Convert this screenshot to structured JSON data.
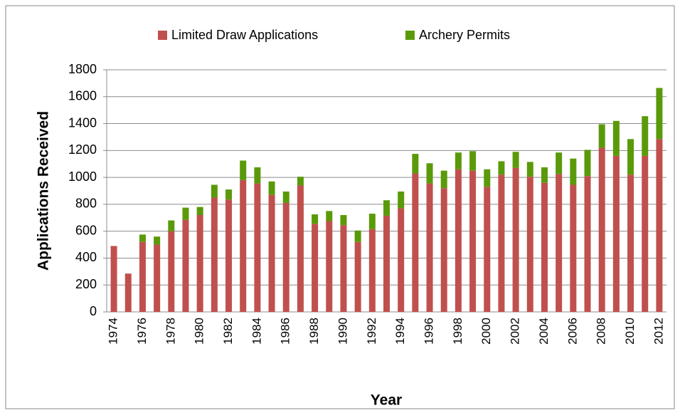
{
  "chart_data": {
    "type": "stacked_bar",
    "xlabel": "Year",
    "ylabel": "Applications Received",
    "categories": [
      "1974",
      null,
      "1976",
      null,
      "1978",
      null,
      "1980",
      null,
      "1982",
      null,
      "1984",
      null,
      "1986",
      null,
      "1988",
      null,
      "1990",
      null,
      "1992",
      null,
      "1994",
      null,
      "1996",
      null,
      "1998",
      null,
      "2000",
      null,
      "2002",
      null,
      "2004",
      null,
      "2006",
      null,
      "2008",
      null,
      "2010",
      null,
      "2012"
    ],
    "series": [
      {
        "name": "Limited Draw Applications",
        "color": "#c0504d",
        "values": [
          490,
          285,
          520,
          500,
          600,
          685,
          720,
          850,
          835,
          980,
          955,
          870,
          810,
          940,
          655,
          675,
          645,
          520,
          615,
          715,
          770,
          1030,
          955,
          920,
          1060,
          1050,
          930,
          1020,
          1070,
          1005,
          960,
          1025,
          945,
          1010,
          1220,
          1160,
          1020,
          1160,
          1285
        ]
      },
      {
        "name": "Archery Permits",
        "color": "#5a9a0a",
        "values": [
          0,
          0,
          55,
          60,
          80,
          90,
          60,
          95,
          75,
          145,
          120,
          100,
          85,
          65,
          70,
          75,
          75,
          85,
          115,
          115,
          125,
          145,
          150,
          130,
          125,
          145,
          130,
          100,
          120,
          110,
          115,
          160,
          195,
          195,
          175,
          260,
          265,
          295,
          380
        ]
      }
    ],
    "ylim": [
      0,
      1800
    ],
    "yticks": [
      0,
      200,
      400,
      600,
      800,
      1000,
      1200,
      1400,
      1600,
      1800
    ],
    "grid": true,
    "legend": "top"
  }
}
